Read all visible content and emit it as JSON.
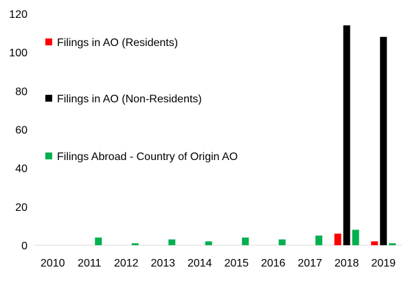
{
  "chart_data": {
    "type": "bar",
    "categories": [
      "2010",
      "2011",
      "2012",
      "2013",
      "2014",
      "2015",
      "2016",
      "2017",
      "2018",
      "2019"
    ],
    "series": [
      {
        "name": "Filings in AO (Residents)",
        "color": "#ff0000",
        "values": [
          0,
          0,
          0,
          0,
          0,
          0,
          0,
          0,
          6,
          2
        ]
      },
      {
        "name": "Filings in AO (Non-Residents)",
        "color": "#000000",
        "values": [
          0,
          0,
          0,
          0,
          0,
          0,
          0,
          0,
          114,
          108
        ]
      },
      {
        "name": "Filings Abroad - Country of Origin AO",
        "color": "#00b050",
        "values": [
          0,
          4,
          1,
          3,
          2,
          4,
          3,
          5,
          8,
          1
        ]
      }
    ],
    "ylim": [
      0,
      120
    ],
    "yticks": [
      0,
      20,
      40,
      60,
      80,
      100,
      120
    ],
    "grid": false,
    "legend_position": "left-inside"
  }
}
